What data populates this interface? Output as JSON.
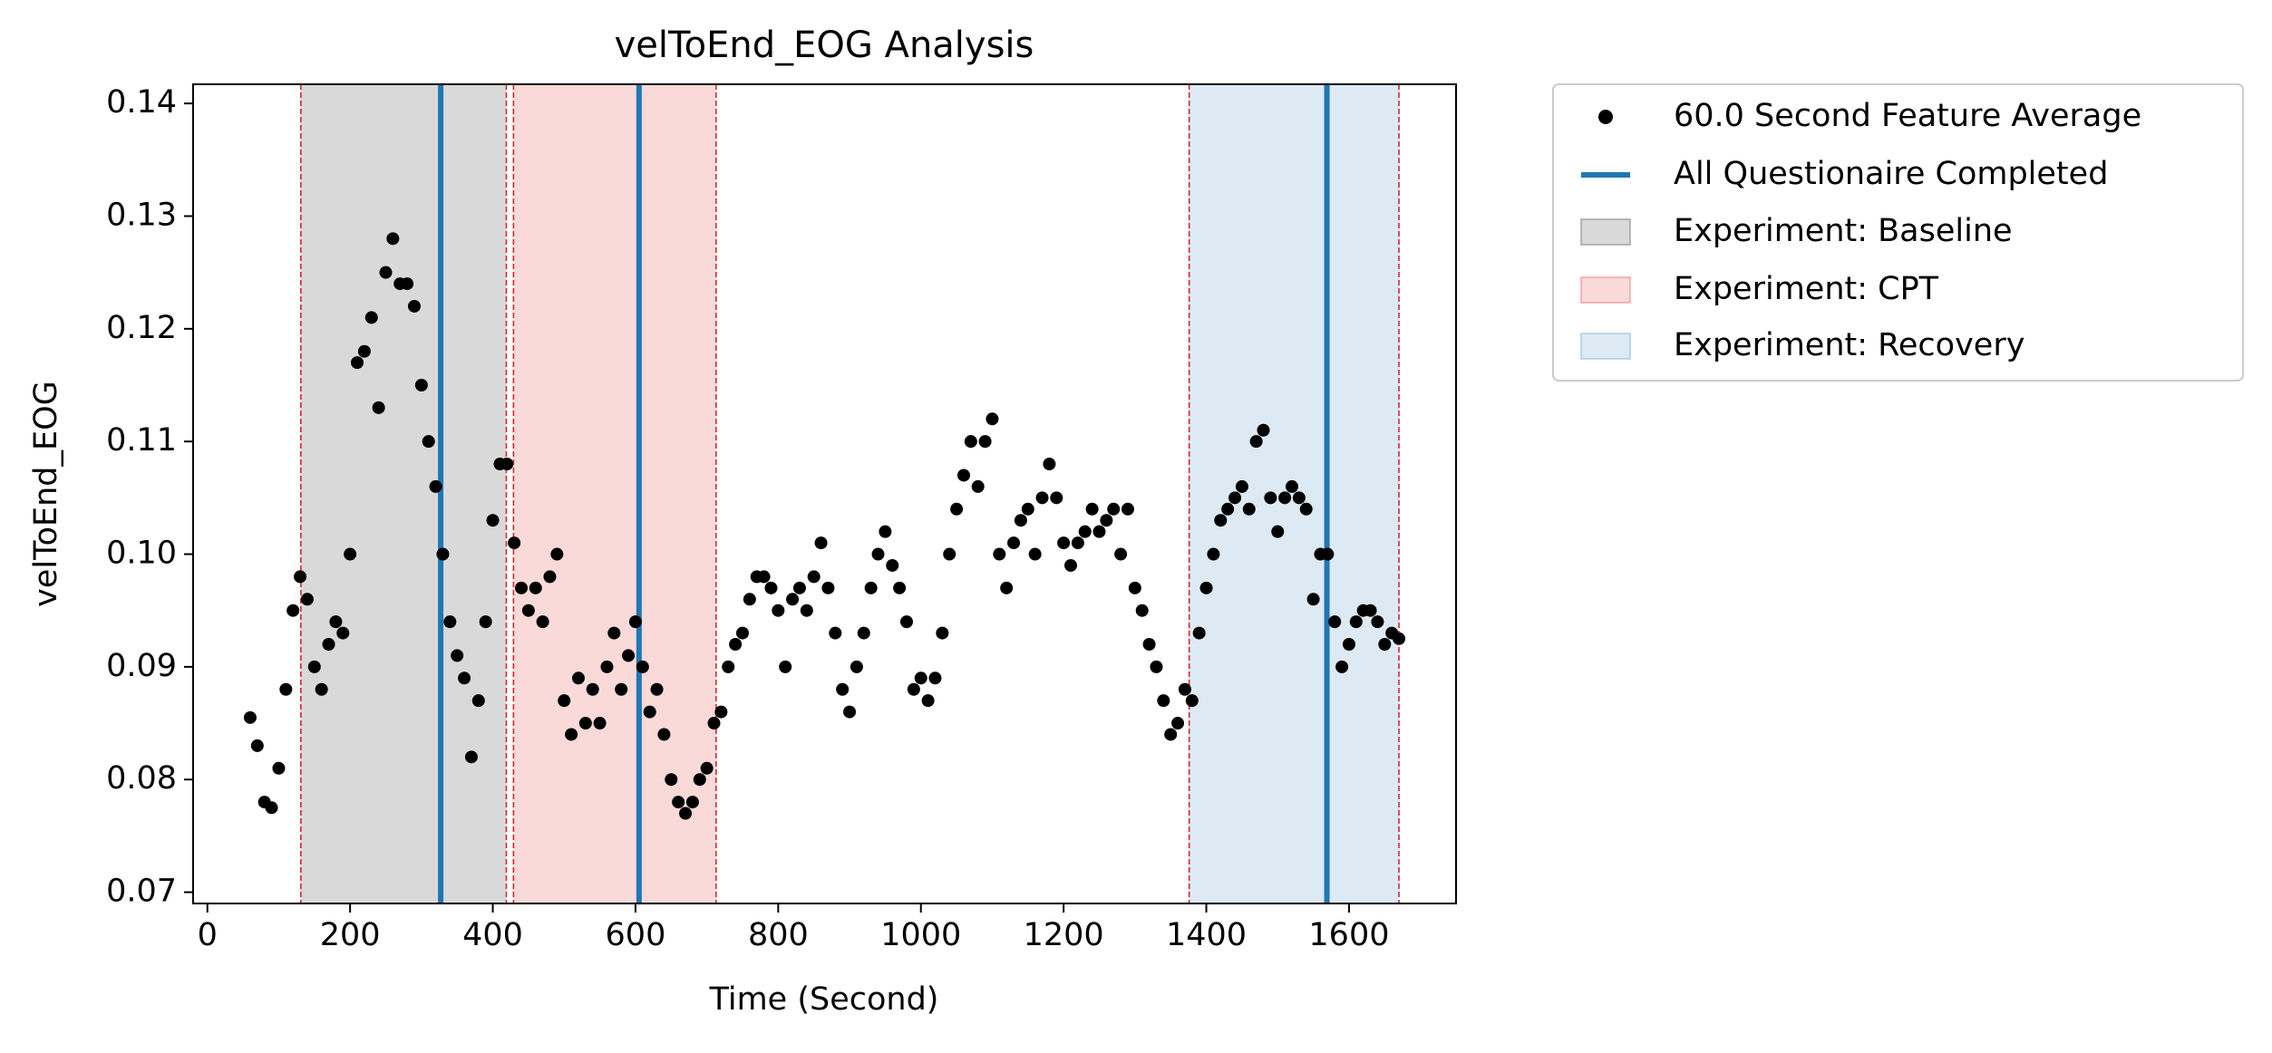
{
  "chart_data": {
    "type": "scatter",
    "title": "velToEnd_EOG Analysis",
    "xlabel": "Time (Second)",
    "ylabel": "velToEnd_EOG",
    "xlim": [
      -20,
      1750
    ],
    "ylim": [
      0.069,
      0.1417
    ],
    "xticks": [
      0,
      200,
      400,
      600,
      800,
      1000,
      1200,
      1400,
      1600
    ],
    "yticks": [
      0.07,
      0.08,
      0.09,
      {
        "value": 0.1,
        "label": "0.10"
      },
      0.11,
      0.12,
      0.13,
      0.14
    ],
    "series": [
      {
        "name": "60.0 Second Feature Average",
        "color": "#000000",
        "x": [
          60,
          70,
          80,
          90,
          100,
          110,
          120,
          130,
          140,
          150,
          160,
          170,
          180,
          190,
          200,
          210,
          220,
          230,
          240,
          250,
          260,
          270,
          280,
          290,
          300,
          310,
          320,
          330,
          340,
          350,
          360,
          370,
          380,
          390,
          400,
          410,
          420,
          430,
          440,
          450,
          460,
          470,
          480,
          490,
          500,
          510,
          520,
          530,
          540,
          550,
          560,
          570,
          580,
          590,
          600,
          610,
          620,
          630,
          640,
          650,
          660,
          670,
          680,
          690,
          700,
          710,
          720,
          730,
          740,
          750,
          760,
          770,
          780,
          790,
          800,
          810,
          820,
          830,
          840,
          850,
          860,
          870,
          880,
          890,
          900,
          910,
          920,
          930,
          940,
          950,
          960,
          970,
          980,
          990,
          1000,
          1010,
          1020,
          1030,
          1040,
          1050,
          1060,
          1070,
          1080,
          1090,
          1100,
          1110,
          1120,
          1130,
          1140,
          1150,
          1160,
          1170,
          1180,
          1190,
          1200,
          1210,
          1220,
          1230,
          1240,
          1250,
          1260,
          1270,
          1280,
          1290,
          1300,
          1310,
          1320,
          1330,
          1340,
          1350,
          1360,
          1370,
          1380,
          1390,
          1400,
          1410,
          1420,
          1430,
          1440,
          1450,
          1460,
          1470,
          1480,
          1490,
          1500,
          1510,
          1520,
          1530,
          1540,
          1550,
          1560,
          1570,
          1580,
          1590,
          1600,
          1610,
          1620,
          1630,
          1640,
          1650,
          1660,
          1670
        ],
        "values": [
          0.0855,
          0.083,
          0.078,
          0.0775,
          0.081,
          0.088,
          0.095,
          0.098,
          0.096,
          0.09,
          0.088,
          0.092,
          0.094,
          0.093,
          0.1,
          0.117,
          0.118,
          0.121,
          0.113,
          0.125,
          0.128,
          0.124,
          0.124,
          0.122,
          0.115,
          0.11,
          0.106,
          0.1,
          0.094,
          0.091,
          0.089,
          0.082,
          0.087,
          0.094,
          0.103,
          0.108,
          0.108,
          0.101,
          0.097,
          0.095,
          0.097,
          0.094,
          0.098,
          0.1,
          0.087,
          0.084,
          0.089,
          0.085,
          0.088,
          0.085,
          0.09,
          0.093,
          0.088,
          0.091,
          0.094,
          0.09,
          0.086,
          0.088,
          0.084,
          0.08,
          0.078,
          0.077,
          0.078,
          0.08,
          0.081,
          0.085,
          0.086,
          0.09,
          0.092,
          0.093,
          0.096,
          0.098,
          0.098,
          0.097,
          0.095,
          0.09,
          0.096,
          0.097,
          0.095,
          0.098,
          0.101,
          0.097,
          0.093,
          0.088,
          0.086,
          0.09,
          0.093,
          0.097,
          0.1,
          0.102,
          0.099,
          0.097,
          0.094,
          0.088,
          0.089,
          0.087,
          0.089,
          0.093,
          0.1,
          0.104,
          0.107,
          0.11,
          0.106,
          0.11,
          0.112,
          0.1,
          0.097,
          0.101,
          0.103,
          0.104,
          0.1,
          0.105,
          0.108,
          0.105,
          0.101,
          0.099,
          0.101,
          0.102,
          0.104,
          0.102,
          0.103,
          0.104,
          0.1,
          0.104,
          0.097,
          0.095,
          0.092,
          0.09,
          0.087,
          0.084,
          0.085,
          0.088,
          0.087,
          0.093,
          0.097,
          0.1,
          0.103,
          0.104,
          0.105,
          0.106,
          0.104,
          0.11,
          0.111,
          0.105,
          0.102,
          0.105,
          0.106,
          0.105,
          0.104,
          0.096,
          0.1,
          0.1,
          0.094,
          0.09,
          0.092,
          0.094,
          0.095,
          0.095,
          0.094,
          0.092,
          0.093,
          0.0925
        ]
      }
    ],
    "vlines": {
      "name": "All Questionaire Completed",
      "color": "#1f77b4",
      "x": [
        327,
        605,
        1569
      ]
    },
    "spans": [
      {
        "name": "Experiment: Baseline",
        "color": "#808080",
        "start": 131,
        "end": 419
      },
      {
        "name": "Experiment: CPT",
        "color": "#f08080",
        "start": 429,
        "end": 713
      },
      {
        "name": "Experiment: Recovery",
        "color": "#8fb8dc",
        "start": 1376,
        "end": 1670
      }
    ],
    "span_edge_color": "#d62728"
  }
}
